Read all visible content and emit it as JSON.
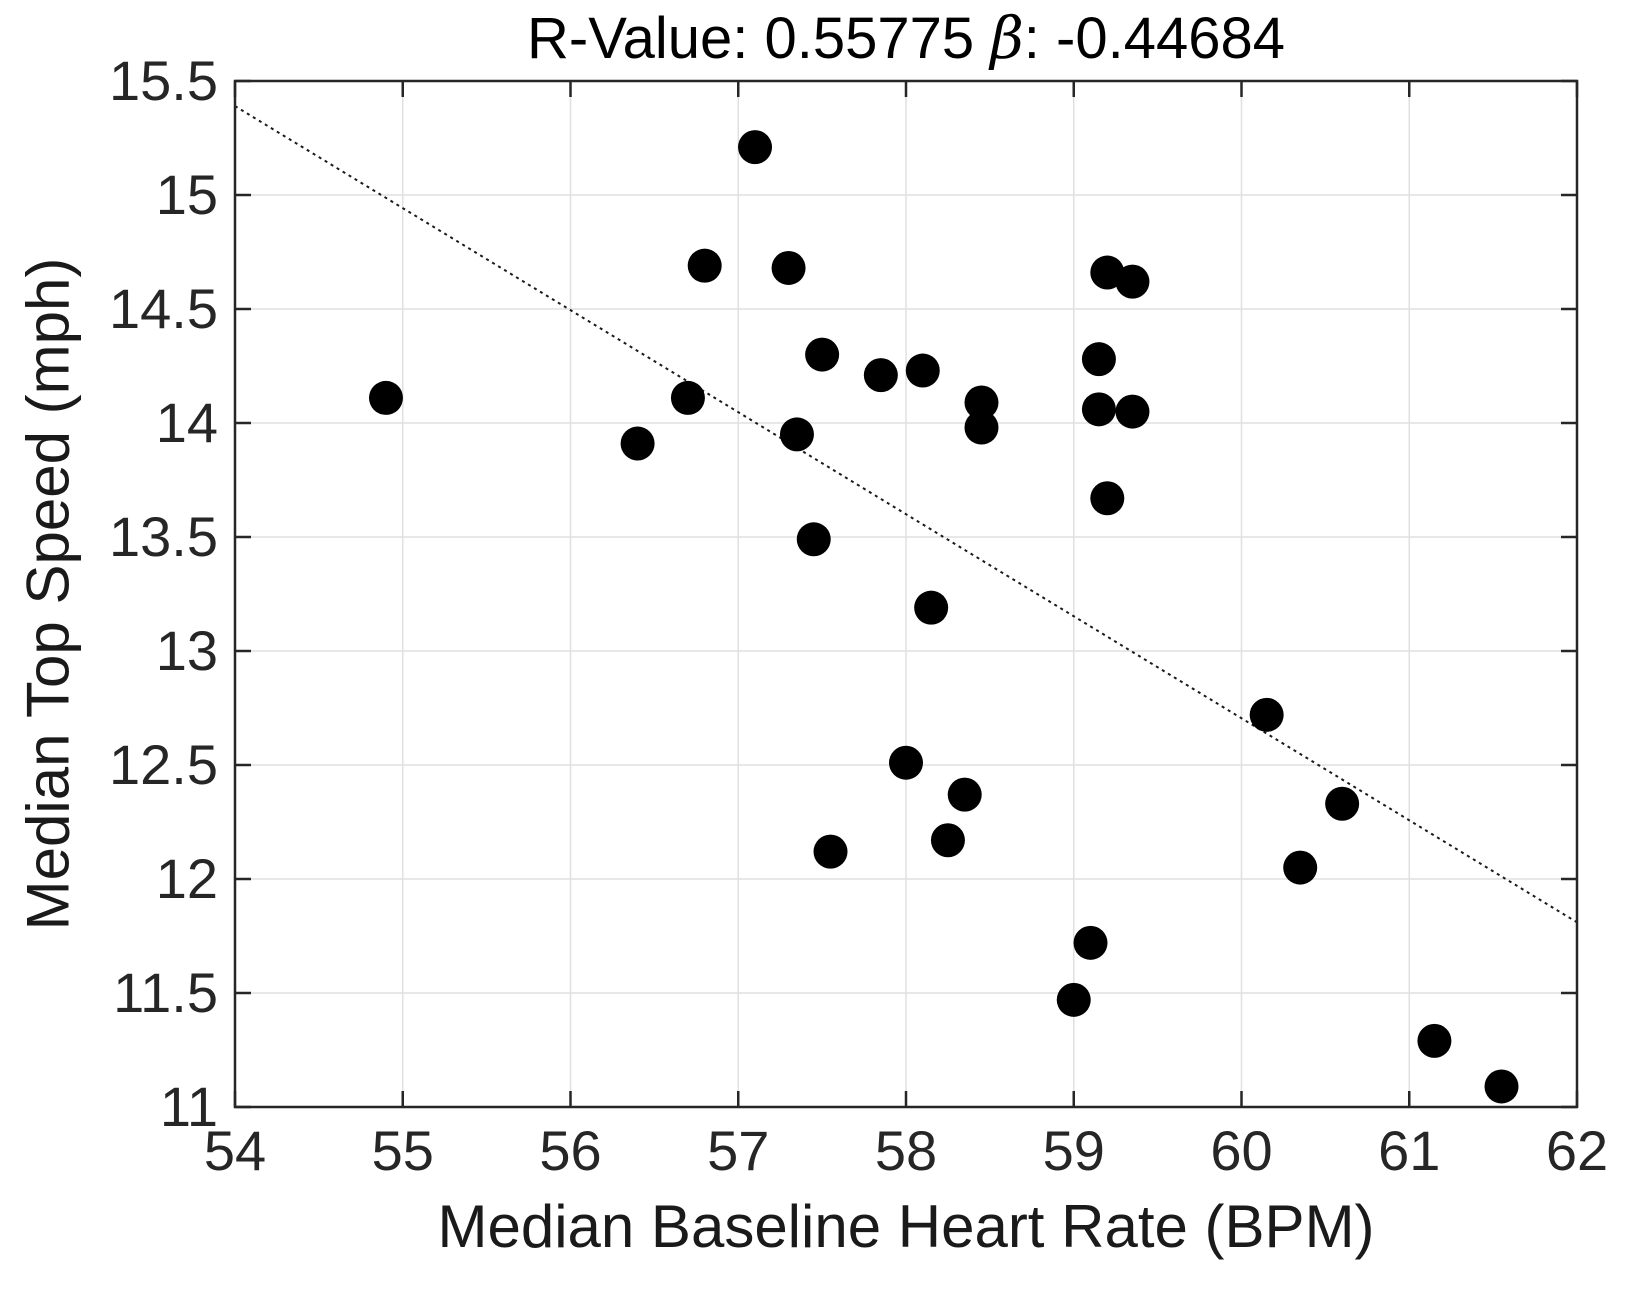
{
  "figure": {
    "title_prefix": "R-Value: 0.55775 ",
    "title_beta": "β",
    "title_suffix": ": -0.44684",
    "xlabel": "Median Baseline Heart Rate (BPM)",
    "ylabel": "Median Top Speed (mph)"
  },
  "chart_data": {
    "type": "scatter",
    "title": "R-Value: 0.55775 β: -0.44684",
    "xlabel": "Median Baseline Heart Rate (BPM)",
    "ylabel": "Median Top Speed (mph)",
    "xlim": [
      54,
      62
    ],
    "ylim": [
      11,
      15.5
    ],
    "grid": true,
    "legend": "none",
    "stats": {
      "r_value": 0.55775,
      "beta": -0.44684
    },
    "x_ticks": {
      "values": [
        54,
        55,
        56,
        57,
        58,
        59,
        60,
        61,
        62
      ],
      "labels": [
        "54",
        "55",
        "56",
        "57",
        "58",
        "59",
        "60",
        "61",
        "62"
      ]
    },
    "y_ticks": {
      "values": [
        11,
        11.5,
        12,
        12.5,
        13,
        13.5,
        14,
        14.5,
        15,
        15.5
      ],
      "labels": [
        "11",
        "11.5",
        "12",
        "12.5",
        "13",
        "13.5",
        "14",
        "14.5",
        "15",
        "15.5"
      ]
    },
    "points": [
      [
        54.9,
        14.11
      ],
      [
        56.4,
        13.91
      ],
      [
        56.7,
        14.11
      ],
      [
        56.8,
        14.69
      ],
      [
        57.1,
        15.21
      ],
      [
        57.3,
        14.68
      ],
      [
        57.35,
        13.95
      ],
      [
        57.45,
        13.49
      ],
      [
        57.5,
        14.3
      ],
      [
        57.55,
        12.12
      ],
      [
        57.85,
        14.21
      ],
      [
        58.0,
        12.51
      ],
      [
        58.1,
        14.23
      ],
      [
        58.15,
        13.19
      ],
      [
        58.25,
        12.17
      ],
      [
        58.35,
        12.37
      ],
      [
        58.45,
        14.09
      ],
      [
        58.45,
        13.98
      ],
      [
        59.0,
        11.47
      ],
      [
        59.1,
        11.72
      ],
      [
        59.15,
        14.28
      ],
      [
        59.15,
        14.06
      ],
      [
        59.2,
        14.66
      ],
      [
        59.2,
        13.67
      ],
      [
        59.35,
        14.62
      ],
      [
        59.35,
        14.05
      ],
      [
        60.15,
        12.72
      ],
      [
        60.35,
        12.05
      ],
      [
        60.6,
        12.33
      ],
      [
        61.15,
        11.29
      ],
      [
        61.55,
        11.09
      ]
    ],
    "fit_line": {
      "x1": 54,
      "y1": 15.39,
      "x2": 62,
      "y2": 11.81,
      "style": "dotted"
    },
    "colors": {
      "marker": "#000000",
      "line": "#1a1a1a",
      "grid": "#e0e0e0",
      "axis": "#262626",
      "background": "#ffffff"
    },
    "marker_radius": 17
  }
}
